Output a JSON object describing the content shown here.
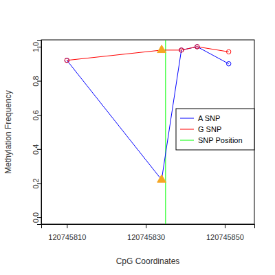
{
  "chart_data": {
    "type": "line",
    "xlabel": "CpG Coordinates",
    "ylabel": "Methylation Frequency",
    "x": [
      120745810,
      120745834,
      120745839,
      120745843,
      120745851
    ],
    "series": [
      {
        "name": "A SNP",
        "color": "#0000ff",
        "marker": "circle",
        "values": [
          0.92,
          0.22,
          0.98,
          1.0,
          0.9
        ]
      },
      {
        "name": "G SNP",
        "color": "#ff0000",
        "marker": "circle",
        "values": [
          0.92,
          0.98,
          0.98,
          1.0,
          0.97
        ]
      }
    ],
    "snp_line": {
      "name": "SNP Position",
      "color": "#00ff00",
      "x": 120745835
    },
    "xlim": [
      120745803.5,
      120745857.5
    ],
    "xticks": [
      120745810,
      120745830,
      120745850
    ],
    "ylim": [
      -0.04,
      1.04
    ],
    "yticks": [
      {
        "value": 0,
        "label": "0.0"
      },
      0.2,
      0.4,
      0.6,
      0.8,
      {
        "value": 1,
        "label": "1.0"
      }
    ],
    "legend": "right",
    "grid": false
  }
}
